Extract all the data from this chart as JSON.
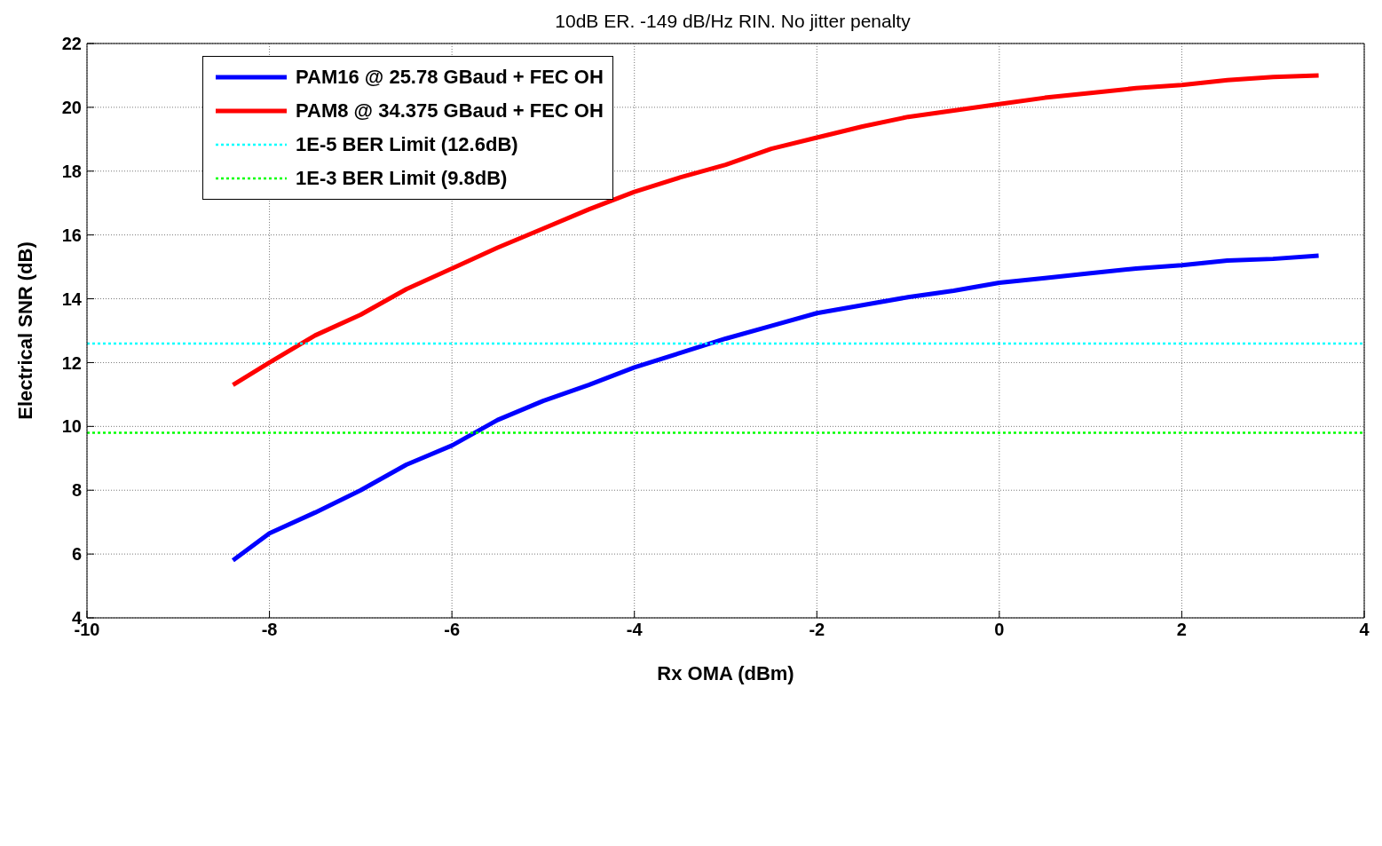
{
  "chart_data": {
    "type": "line",
    "title": "10dB ER. -149 dB/Hz RIN. No jitter penalty",
    "xlabel": "Rx OMA (dBm)",
    "ylabel": "Electrical SNR (dB)",
    "xlim": [
      -10,
      4
    ],
    "xticks": [
      -10,
      -8,
      -6,
      -4,
      -2,
      0,
      2,
      4
    ],
    "ylim": [
      4,
      22
    ],
    "yticks": [
      4,
      6,
      8,
      10,
      12,
      14,
      16,
      18,
      20,
      22
    ],
    "grid": true,
    "legend": "top left",
    "marker": "none",
    "series": [
      {
        "name": "PAM16 @ 25.78 GBaud + FEC OH",
        "color": "#0000ff",
        "line_style": "solid",
        "x": [
          -8.4,
          -8,
          -7.5,
          -7,
          -6.5,
          -6,
          -5.5,
          -5,
          -4.5,
          -4,
          -3.5,
          -3,
          -2.5,
          -2,
          -1.5,
          -1,
          -0.5,
          0,
          0.5,
          1,
          1.5,
          2,
          2.5,
          3,
          3.5
        ],
        "values": [
          5.8,
          6.65,
          7.3,
          8.0,
          8.8,
          9.4,
          10.2,
          10.8,
          11.3,
          11.85,
          12.3,
          12.75,
          13.15,
          13.55,
          13.8,
          14.05,
          14.25,
          14.5,
          14.65,
          14.8,
          14.95,
          15.05,
          15.2,
          15.25,
          15.35
        ]
      },
      {
        "name": "PAM8 @ 34.375 GBaud + FEC OH",
        "color": "#ff0000",
        "line_style": "solid",
        "x": [
          -8.4,
          -8,
          -7.5,
          -7,
          -6.5,
          -6,
          -5.5,
          -5,
          -4.5,
          -4,
          -3.5,
          -3,
          -2.5,
          -2,
          -1.5,
          -1,
          -0.5,
          0,
          0.5,
          1,
          1.5,
          2,
          2.5,
          3,
          3.5
        ],
        "values": [
          11.3,
          12.0,
          12.85,
          13.5,
          14.3,
          14.95,
          15.6,
          16.2,
          16.8,
          17.35,
          17.8,
          18.2,
          18.7,
          19.05,
          19.4,
          19.7,
          19.9,
          20.1,
          20.3,
          20.45,
          20.6,
          20.7,
          20.85,
          20.95,
          21.0
        ]
      },
      {
        "name": "1E-5 BER Limit (12.6dB)",
        "color": "#00ffff",
        "line_style": "dotted",
        "x": [
          -10,
          4
        ],
        "values": [
          12.6,
          12.6
        ]
      },
      {
        "name": "1E-3 BER Limit (9.8dB)",
        "color": "#00ff00",
        "line_style": "dotted",
        "x": [
          -10,
          4
        ],
        "values": [
          9.8,
          9.8
        ]
      }
    ]
  }
}
